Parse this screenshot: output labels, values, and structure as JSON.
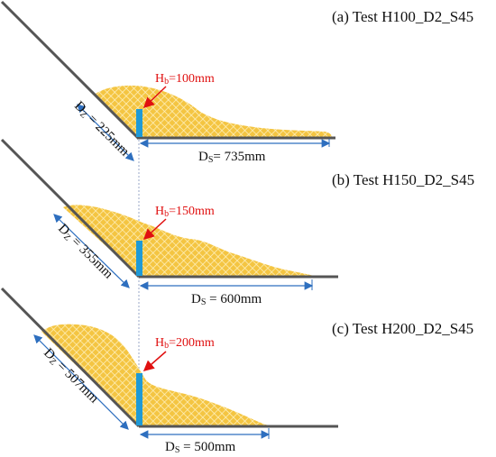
{
  "panels": [
    {
      "title": "(a) Test H100_D2_S45",
      "hb_label": "H",
      "hb_sub": "b",
      "hb_value": "=100mm",
      "dz_label": "D",
      "dz_sub": "Z",
      "dz_value": " = 225mm",
      "ds_label": "D",
      "ds_sub": "S",
      "ds_value": "= 735mm"
    },
    {
      "title": "(b) Test H150_D2_S45",
      "hb_label": "H",
      "hb_sub": "b",
      "hb_value": "=150mm",
      "dz_label": "D",
      "dz_sub": "Z",
      "dz_value": " = 355mm",
      "ds_label": "D",
      "ds_sub": "S",
      "ds_value": " = 600mm"
    },
    {
      "title": "(c) Test H200_D2_S45",
      "hb_label": "H",
      "hb_sub": "b",
      "hb_value": "=200mm",
      "dz_label": "D",
      "dz_sub": "Z",
      "dz_value": " = 507mm",
      "ds_label": "D",
      "ds_sub": "S",
      "ds_value": " = 500mm"
    }
  ],
  "colors": {
    "deposit_fill": "#f4c542",
    "deposit_hatch": "#fff3c4",
    "barrier": "#1f9ad6",
    "slope_line": "#555555",
    "dimension": "#2e6fbf",
    "annotation": "#e01010"
  }
}
